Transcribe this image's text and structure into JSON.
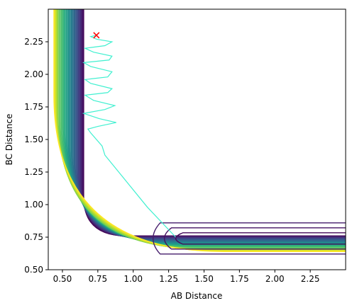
{
  "chart_data": {
    "type": "contour",
    "xlabel": "AB Distance",
    "ylabel": "BC Distance",
    "xlim": [
      0.4,
      2.5
    ],
    "ylim": [
      0.5,
      2.5
    ],
    "xticks": [
      "0.50",
      "0.75",
      "1.00",
      "1.25",
      "1.50",
      "1.75",
      "2.00",
      "2.25"
    ],
    "xtick_values": [
      0.5,
      0.75,
      1.0,
      1.25,
      1.5,
      1.75,
      2.0,
      2.25
    ],
    "yticks": [
      "0.50",
      "0.75",
      "1.00",
      "1.25",
      "1.50",
      "1.75",
      "2.00",
      "2.25"
    ],
    "ytick_values": [
      0.5,
      0.75,
      1.0,
      1.25,
      1.5,
      1.75,
      2.0,
      2.25
    ],
    "colormap": "viridis",
    "contour_level_count": 36,
    "well_minimum": [
      2.5,
      0.74
    ],
    "trajectory_color": "#40f0d0",
    "trajectory": [
      [
        1.3,
        0.75
      ],
      [
        1.1,
        0.98
      ],
      [
        0.92,
        1.22
      ],
      [
        0.8,
        1.38
      ],
      [
        0.78,
        1.45
      ],
      [
        0.7,
        1.55
      ],
      [
        0.68,
        1.58
      ],
      [
        0.75,
        1.6
      ],
      [
        0.88,
        1.63
      ],
      [
        0.76,
        1.66
      ],
      [
        0.65,
        1.7
      ],
      [
        0.8,
        1.73
      ],
      [
        0.87,
        1.76
      ],
      [
        0.72,
        1.8
      ],
      [
        0.66,
        1.84
      ],
      [
        0.82,
        1.86
      ],
      [
        0.85,
        1.89
      ],
      [
        0.7,
        1.93
      ],
      [
        0.66,
        1.96
      ],
      [
        0.82,
        1.98
      ],
      [
        0.85,
        2.02
      ],
      [
        0.7,
        2.06
      ],
      [
        0.65,
        2.09
      ],
      [
        0.83,
        2.11
      ],
      [
        0.85,
        2.14
      ],
      [
        0.72,
        2.17
      ],
      [
        0.66,
        2.2
      ],
      [
        0.8,
        2.22
      ],
      [
        0.85,
        2.25
      ],
      [
        0.74,
        2.27
      ],
      [
        0.7,
        2.29
      ],
      [
        0.74,
        2.3
      ]
    ],
    "start_marker": {
      "x": 0.74,
      "y": 2.3,
      "symbol": "x",
      "color": "#ff0000"
    }
  }
}
